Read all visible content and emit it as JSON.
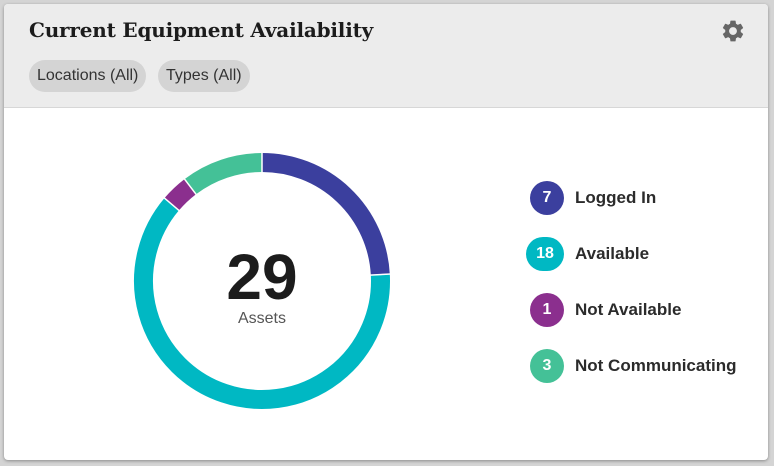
{
  "card": {
    "title": "Current Equipment Availability",
    "settings_icon": "gear-icon",
    "filters": [
      {
        "label": "Locations (All)"
      },
      {
        "label": "Types (All)"
      }
    ]
  },
  "summary": {
    "total": "29",
    "caption": "Assets"
  },
  "colors": {
    "logged_in": "#3b3f9e",
    "available": "#00b8c3",
    "not_available": "#8b2f8e",
    "not_communicating": "#44c197",
    "header_bg": "#ececec",
    "chip_bg": "#d4d4d4",
    "gear": "#666666"
  },
  "legend": [
    {
      "count": "7",
      "label": "Logged In",
      "color_key": "logged_in"
    },
    {
      "count": "18",
      "label": "Available",
      "color_key": "available"
    },
    {
      "count": "1",
      "label": "Not Available",
      "color_key": "not_available"
    },
    {
      "count": "3",
      "label": "Not Communicating",
      "color_key": "not_communicating"
    }
  ],
  "chart_data": {
    "type": "pie",
    "categories": [
      "Logged In",
      "Available",
      "Not Available",
      "Not Communicating"
    ],
    "values": [
      7,
      18,
      1,
      3
    ],
    "colors": [
      "#3b3f9e",
      "#00b8c3",
      "#8b2f8e",
      "#44c197"
    ],
    "center_value": "29",
    "center_label": "Assets",
    "start": "top, clockwise",
    "legend_position": "right"
  }
}
